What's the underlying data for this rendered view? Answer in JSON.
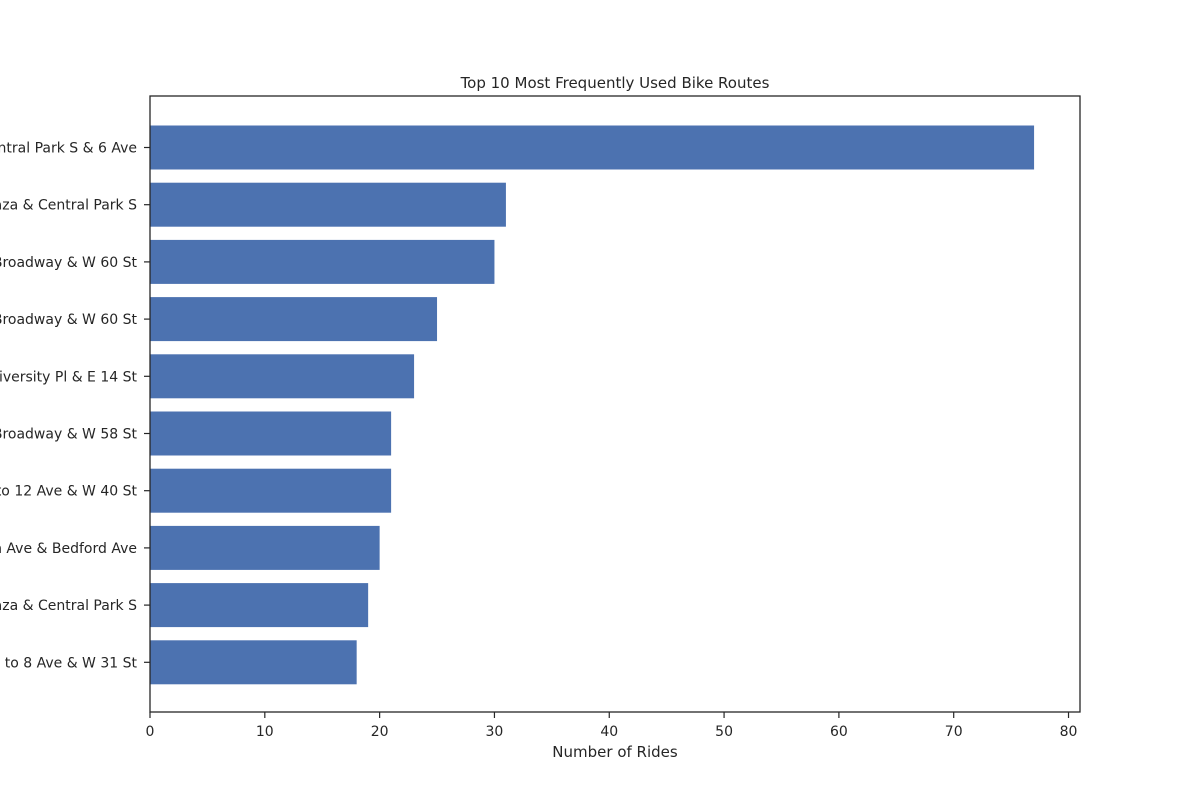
{
  "chart_data": {
    "type": "bar",
    "orientation": "horizontal",
    "title": "Top 10 Most Frequently Used Bike Routes",
    "xlabel": "Number of Rides",
    "ylabel": "",
    "xlim": [
      0,
      81
    ],
    "xticks": [
      "0",
      "10",
      "20",
      "30",
      "40",
      "50",
      "60",
      "70",
      "80"
    ],
    "categories": [
      "ntral Park S & 6 Ave",
      "aza & Central Park S",
      "Broadway & W 60 St",
      "Broadway & W 60 St",
      "iversity Pl & E 14 St",
      "Broadway & W 58 St",
      "to 12 Ave & W 40 St",
      "n Ave & Bedford Ave",
      "aza & Central Park S",
      "e to 8 Ave & W 31 St"
    ],
    "values": [
      77,
      31,
      30,
      25,
      23,
      21,
      21,
      20,
      19,
      18
    ],
    "bar_color": "#4c72b0",
    "grid": false
  }
}
